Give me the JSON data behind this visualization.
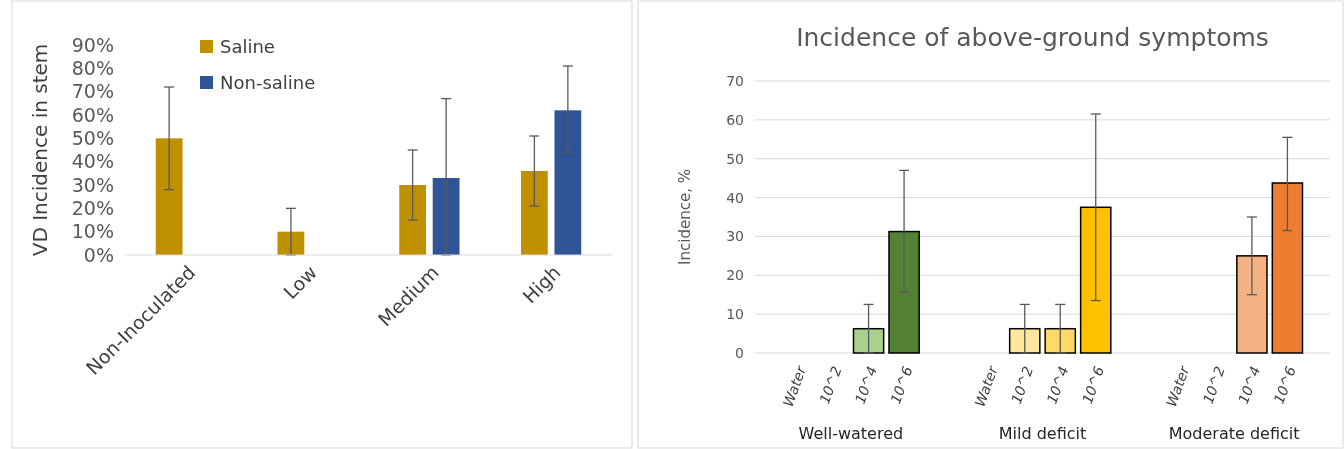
{
  "chart_data": [
    {
      "type": "bar",
      "ylabel": "VD Incidence in stem",
      "categories": [
        "Non-Inoculated",
        "Low",
        "Medium",
        "High"
      ],
      "series": [
        {
          "name": "Saline",
          "color": "#bf9000",
          "values": [
            50,
            10,
            30,
            36
          ],
          "errors": [
            [
              28,
              72
            ],
            [
              0,
              20
            ],
            [
              15,
              45
            ],
            [
              21,
              51
            ]
          ]
        },
        {
          "name": "Non-saline",
          "color": "#2f5597",
          "values": [
            0,
            0,
            33,
            62
          ],
          "errors": [
            null,
            null,
            [
              0,
              67
            ],
            [
              44,
              81
            ]
          ]
        }
      ],
      "ylim": [
        0,
        90
      ],
      "yticks": [
        {
          "value": 0,
          "label": "0%"
        },
        {
          "value": 10,
          "label": "10%"
        },
        {
          "value": 20,
          "label": "20%"
        },
        {
          "value": 30,
          "label": "30%"
        },
        {
          "value": 40,
          "label": "40%"
        },
        {
          "value": 50,
          "label": "50%"
        },
        {
          "value": 60,
          "label": "60%"
        },
        {
          "value": 70,
          "label": "70%"
        },
        {
          "value": 80,
          "label": "80%"
        },
        {
          "value": 90,
          "label": "90%"
        }
      ],
      "grid": false,
      "legend": "top"
    },
    {
      "type": "bar",
      "title": "Incidence of above-ground symptoms",
      "ylabel": "Incidence, %",
      "categories": [
        "Water",
        "10^2",
        "10^4",
        "10^6",
        "Water",
        "10^2",
        "10^4",
        "10^6",
        "Water",
        "10^2",
        "10^4",
        "10^6"
      ],
      "values": [
        0,
        0,
        6.25,
        31.25,
        0,
        6.25,
        6.25,
        37.5,
        0,
        0,
        25,
        43.75
      ],
      "colors": [
        "#a9d18e",
        "#a9d18e",
        "#a9d18e",
        "#548235",
        "#ffe699",
        "#ffe699",
        "#ffd966",
        "#ffc000",
        "#f4b183",
        "#f4b183",
        "#f4b183",
        "#ed7d31"
      ],
      "errors": [
        null,
        null,
        [
          0,
          12.5
        ],
        [
          15.6,
          47
        ],
        null,
        [
          0,
          12.5
        ],
        [
          0,
          12.5
        ],
        [
          13.5,
          61.5
        ],
        null,
        null,
        [
          15,
          35
        ],
        [
          31.5,
          55.5
        ]
      ],
      "annotations": [
        "Well-watered",
        "Mild deficit",
        "Moderate deficit"
      ],
      "ylim": [
        0,
        70
      ],
      "yticks": [
        0,
        10,
        20,
        30,
        40,
        50,
        60,
        70
      ],
      "grid": "y"
    }
  ]
}
